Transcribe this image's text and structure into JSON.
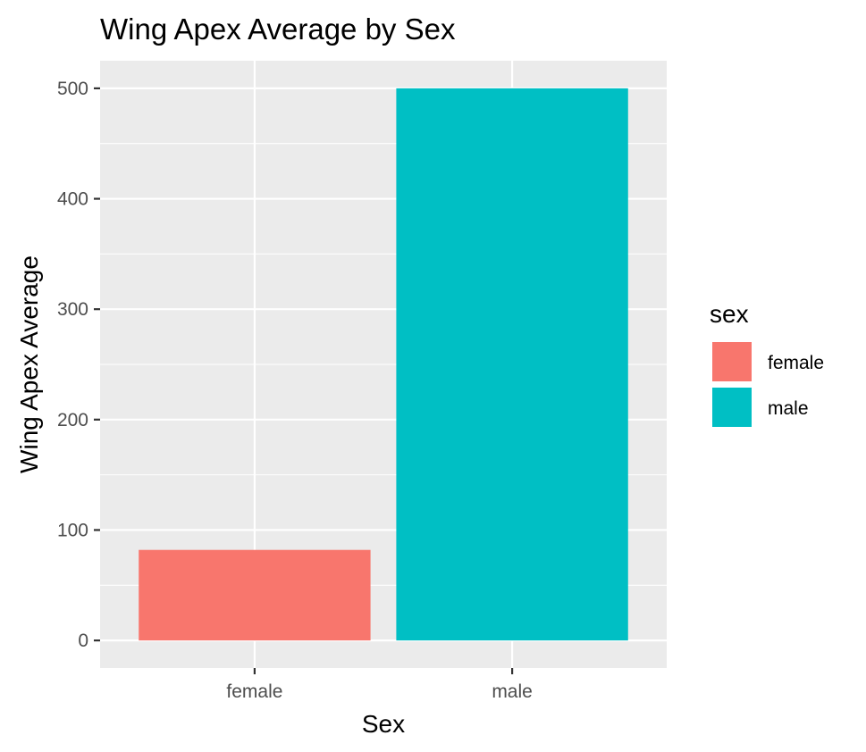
{
  "chart_data": {
    "type": "bar",
    "title": "Wing Apex Average by Sex",
    "xlabel": "Sex",
    "ylabel": "Wing Apex Average",
    "categories": [
      "female",
      "male"
    ],
    "values": [
      82,
      500
    ],
    "ylim": [
      -25,
      525
    ],
    "yticks": [
      0,
      100,
      200,
      300,
      400,
      500
    ],
    "grid": true,
    "legend": {
      "title": "sex",
      "position": "right",
      "entries": [
        {
          "label": "female",
          "color": "#F8766D"
        },
        {
          "label": "male",
          "color": "#00BFC4"
        }
      ]
    },
    "colors": [
      "#F8766D",
      "#00BFC4"
    ],
    "panel_background": "#EBEBEB"
  }
}
